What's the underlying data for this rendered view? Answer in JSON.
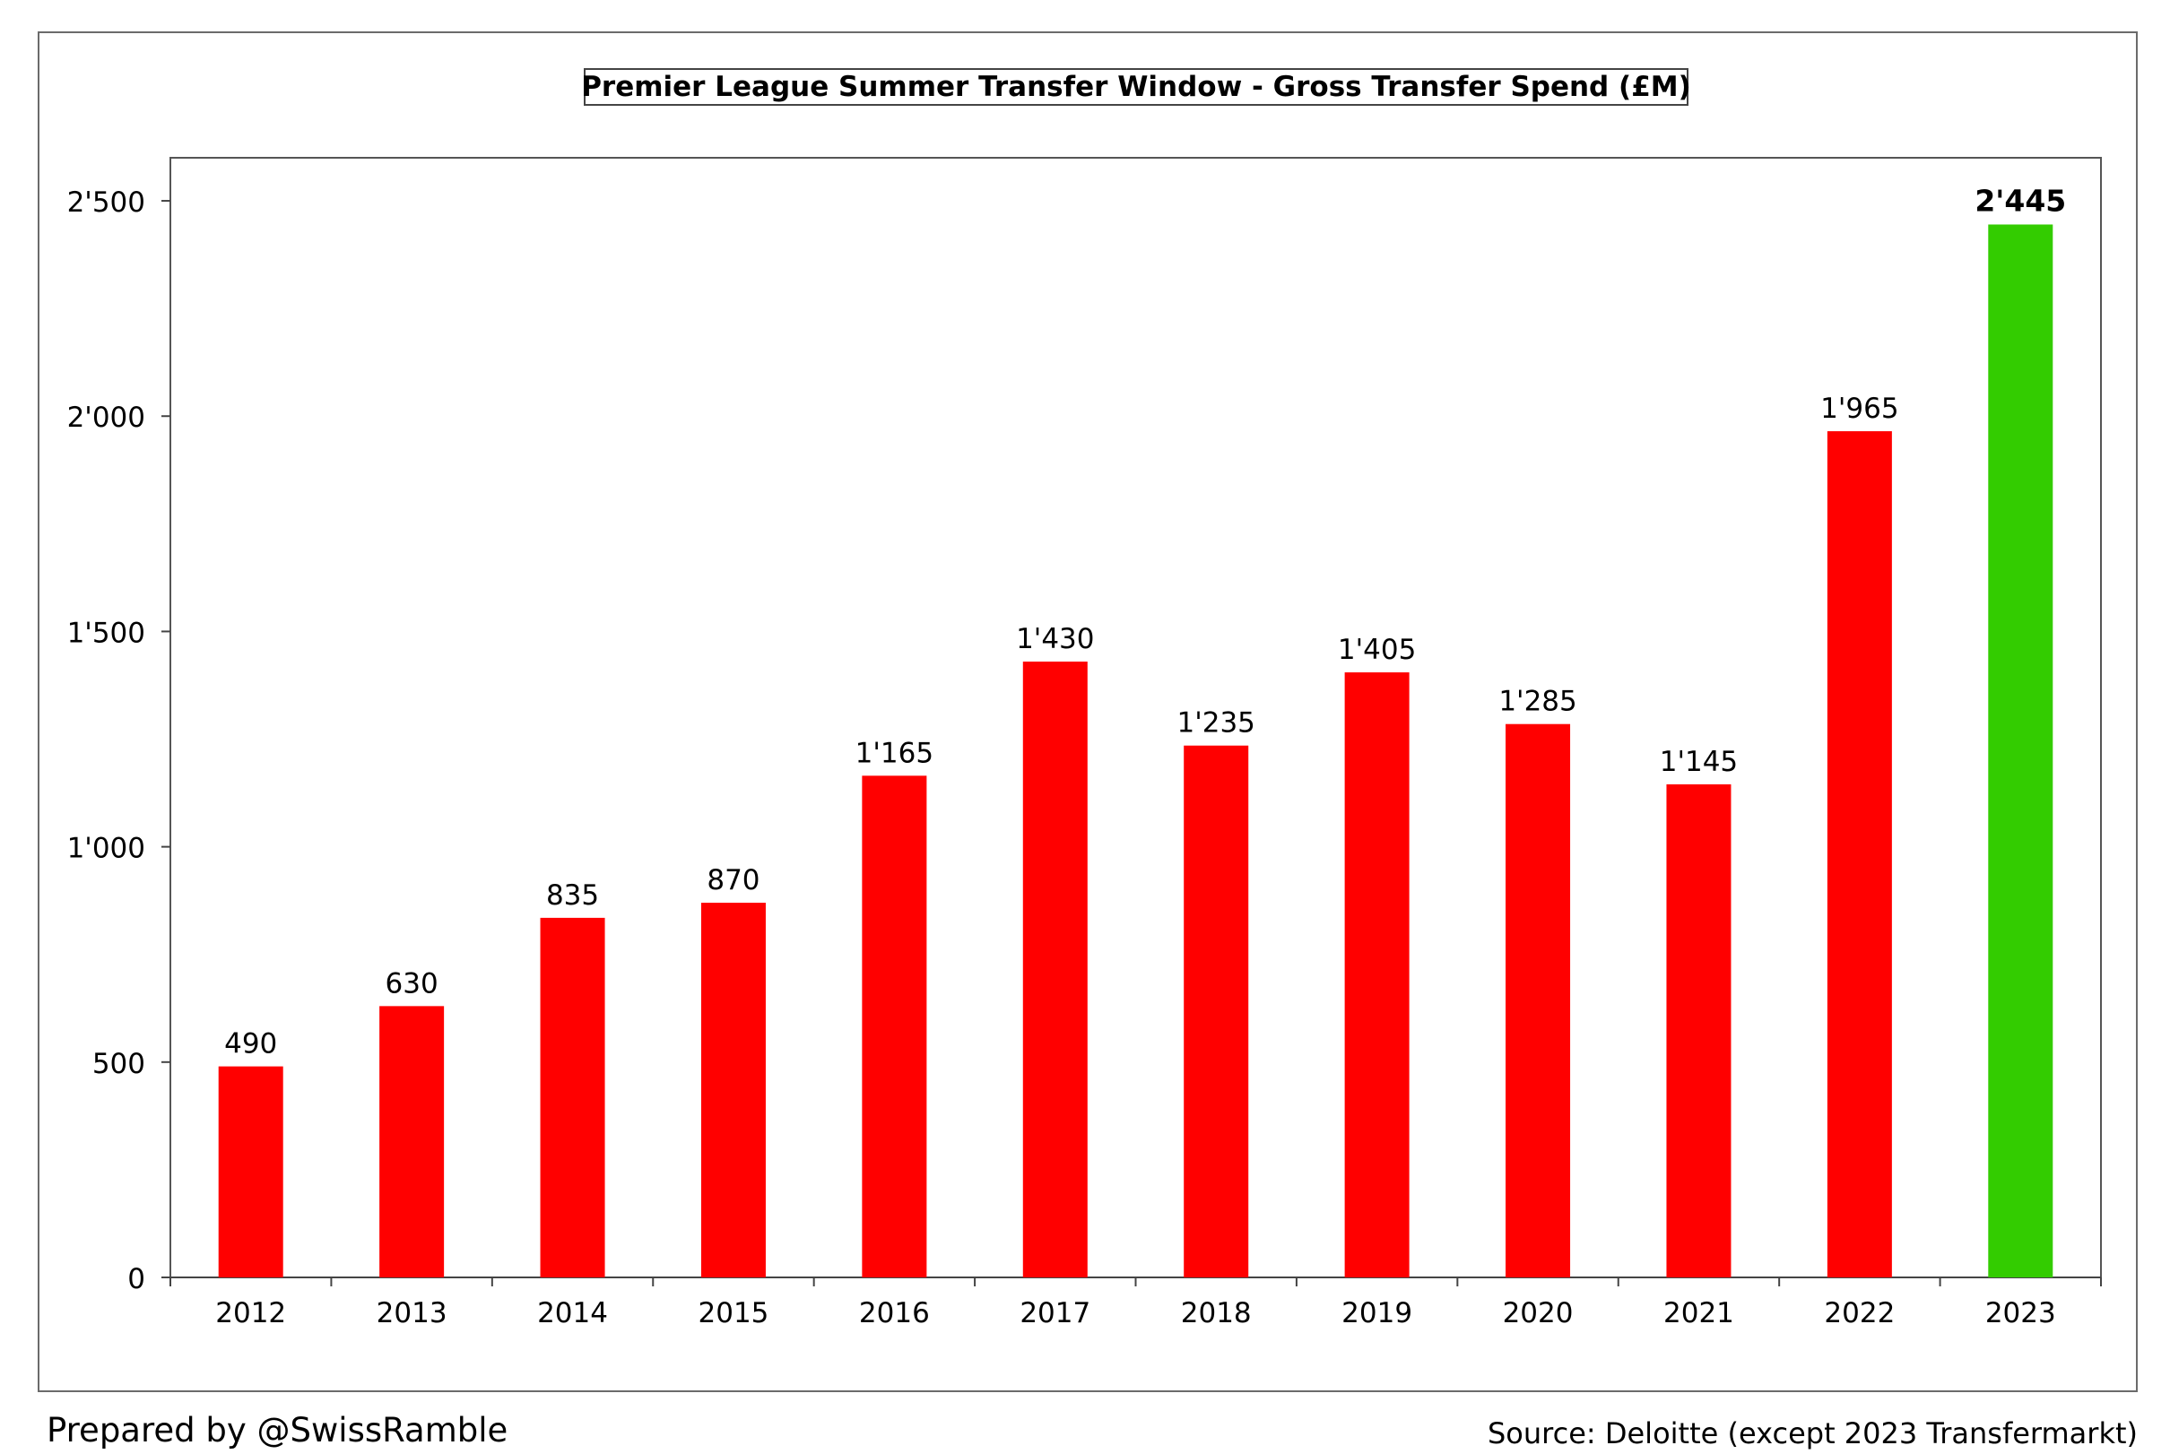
{
  "chart_data": {
    "type": "bar",
    "title": "Premier League Summer Transfer Window - Gross Transfer Spend (£M)",
    "xlabel": "",
    "ylabel": "",
    "ylim": [
      0,
      2600
    ],
    "yticks": [
      0,
      500,
      1000,
      1500,
      2000,
      2500
    ],
    "ytick_labels": [
      "0",
      "500",
      "1'000",
      "1'500",
      "2'000",
      "2'500"
    ],
    "categories": [
      "2012",
      "2013",
      "2014",
      "2015",
      "2016",
      "2017",
      "2018",
      "2019",
      "2020",
      "2021",
      "2022",
      "2023"
    ],
    "values": [
      490,
      630,
      835,
      870,
      1165,
      1430,
      1235,
      1405,
      1285,
      1145,
      1965,
      2445
    ],
    "value_labels": [
      "490",
      "630",
      "835",
      "870",
      "1'165",
      "1'430",
      "1'235",
      "1'405",
      "1'285",
      "1'145",
      "1'965",
      "2'445"
    ],
    "bar_colors": [
      "#ff0000",
      "#ff0000",
      "#ff0000",
      "#ff0000",
      "#ff0000",
      "#ff0000",
      "#ff0000",
      "#ff0000",
      "#ff0000",
      "#ff0000",
      "#ff0000",
      "#33cc00"
    ],
    "highlight_index": 11,
    "grid": false,
    "legend": "none"
  },
  "footer": {
    "prepared_by": "Prepared by @SwissRamble",
    "source": "Source: Deloitte (except 2023 Transfermarkt)"
  }
}
